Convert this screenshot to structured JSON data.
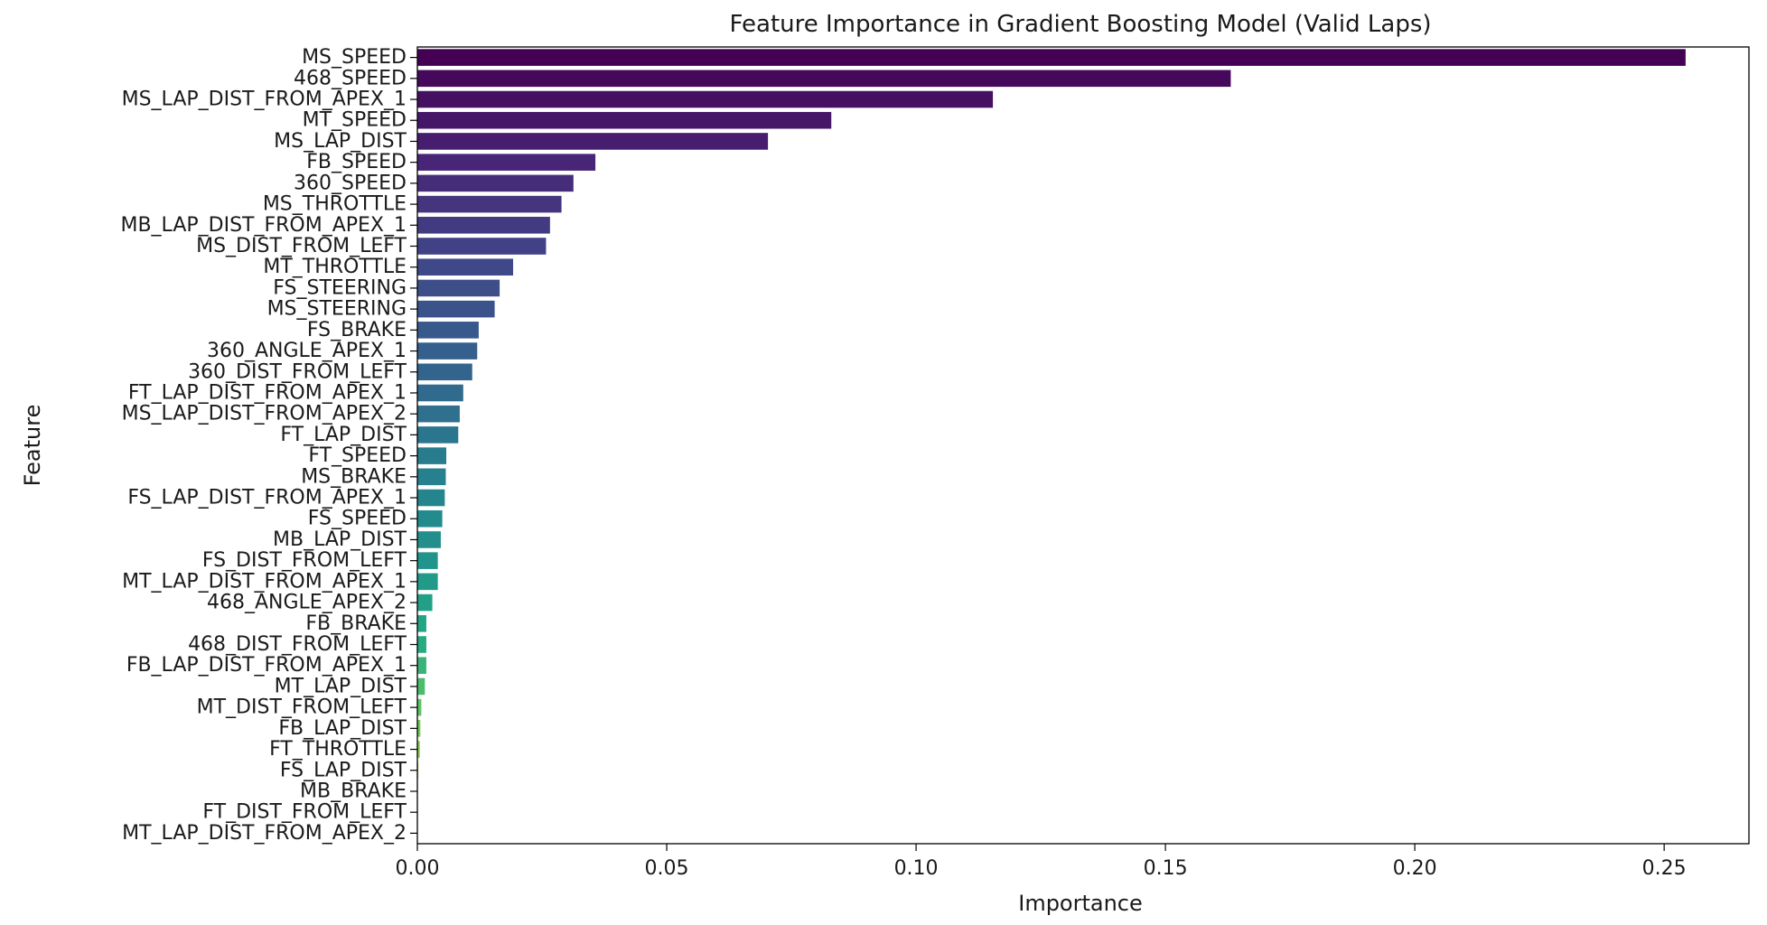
{
  "chart_data": {
    "type": "bar",
    "orientation": "horizontal",
    "title": "Feature Importance in Gradient Boosting Model (Valid Laps)",
    "xlabel": "Importance",
    "ylabel": "Feature",
    "xlim": [
      0.0,
      0.267
    ],
    "xticks": [
      0.0,
      0.05,
      0.1,
      0.15,
      0.2,
      0.25
    ],
    "xtick_labels": [
      "0.00",
      "0.05",
      "0.10",
      "0.15",
      "0.20",
      "0.25"
    ],
    "grid": false,
    "colormap": "viridis",
    "categories": [
      "MS_SPEED",
      "468_SPEED",
      "MS_LAP_DIST_FROM_APEX_1",
      "MT_SPEED",
      "MS_LAP_DIST",
      "FB_SPEED",
      "360_SPEED",
      "MS_THROTTLE",
      "MB_LAP_DIST_FROM_APEX_1",
      "MS_DIST_FROM_LEFT",
      "MT_THROTTLE",
      "FS_STEERING",
      "MS_STEERING",
      "FS_BRAKE",
      "360_ANGLE_APEX_1",
      "360_DIST_FROM_LEFT",
      "FT_LAP_DIST_FROM_APEX_1",
      "MS_LAP_DIST_FROM_APEX_2",
      "FT_LAP_DIST",
      "FT_SPEED",
      "MS_BRAKE",
      "FS_LAP_DIST_FROM_APEX_1",
      "FS_SPEED",
      "MB_LAP_DIST",
      "FS_DIST_FROM_LEFT",
      "MT_LAP_DIST_FROM_APEX_1",
      "468_ANGLE_APEX_2",
      "FB_BRAKE",
      "468_DIST_FROM_LEFT",
      "FB_LAP_DIST_FROM_APEX_1",
      "MT_LAP_DIST",
      "MT_DIST_FROM_LEFT",
      "FB_LAP_DIST",
      "FT_THROTTLE",
      "FS_LAP_DIST",
      "MB_BRAKE",
      "FT_DIST_FROM_LEFT",
      "MT_LAP_DIST_FROM_APEX_2"
    ],
    "values": [
      0.2543,
      0.1631,
      0.1154,
      0.083,
      0.0703,
      0.0357,
      0.0313,
      0.0289,
      0.0266,
      0.0258,
      0.0192,
      0.0165,
      0.0155,
      0.0123,
      0.012,
      0.011,
      0.0092,
      0.0085,
      0.0082,
      0.0058,
      0.0057,
      0.0055,
      0.005,
      0.0047,
      0.0041,
      0.0041,
      0.003,
      0.0018,
      0.0018,
      0.0018,
      0.0015,
      0.0008,
      0.0006,
      0.0005,
      0.0002,
      0.0001,
      0.0001,
      5e-05
    ]
  }
}
